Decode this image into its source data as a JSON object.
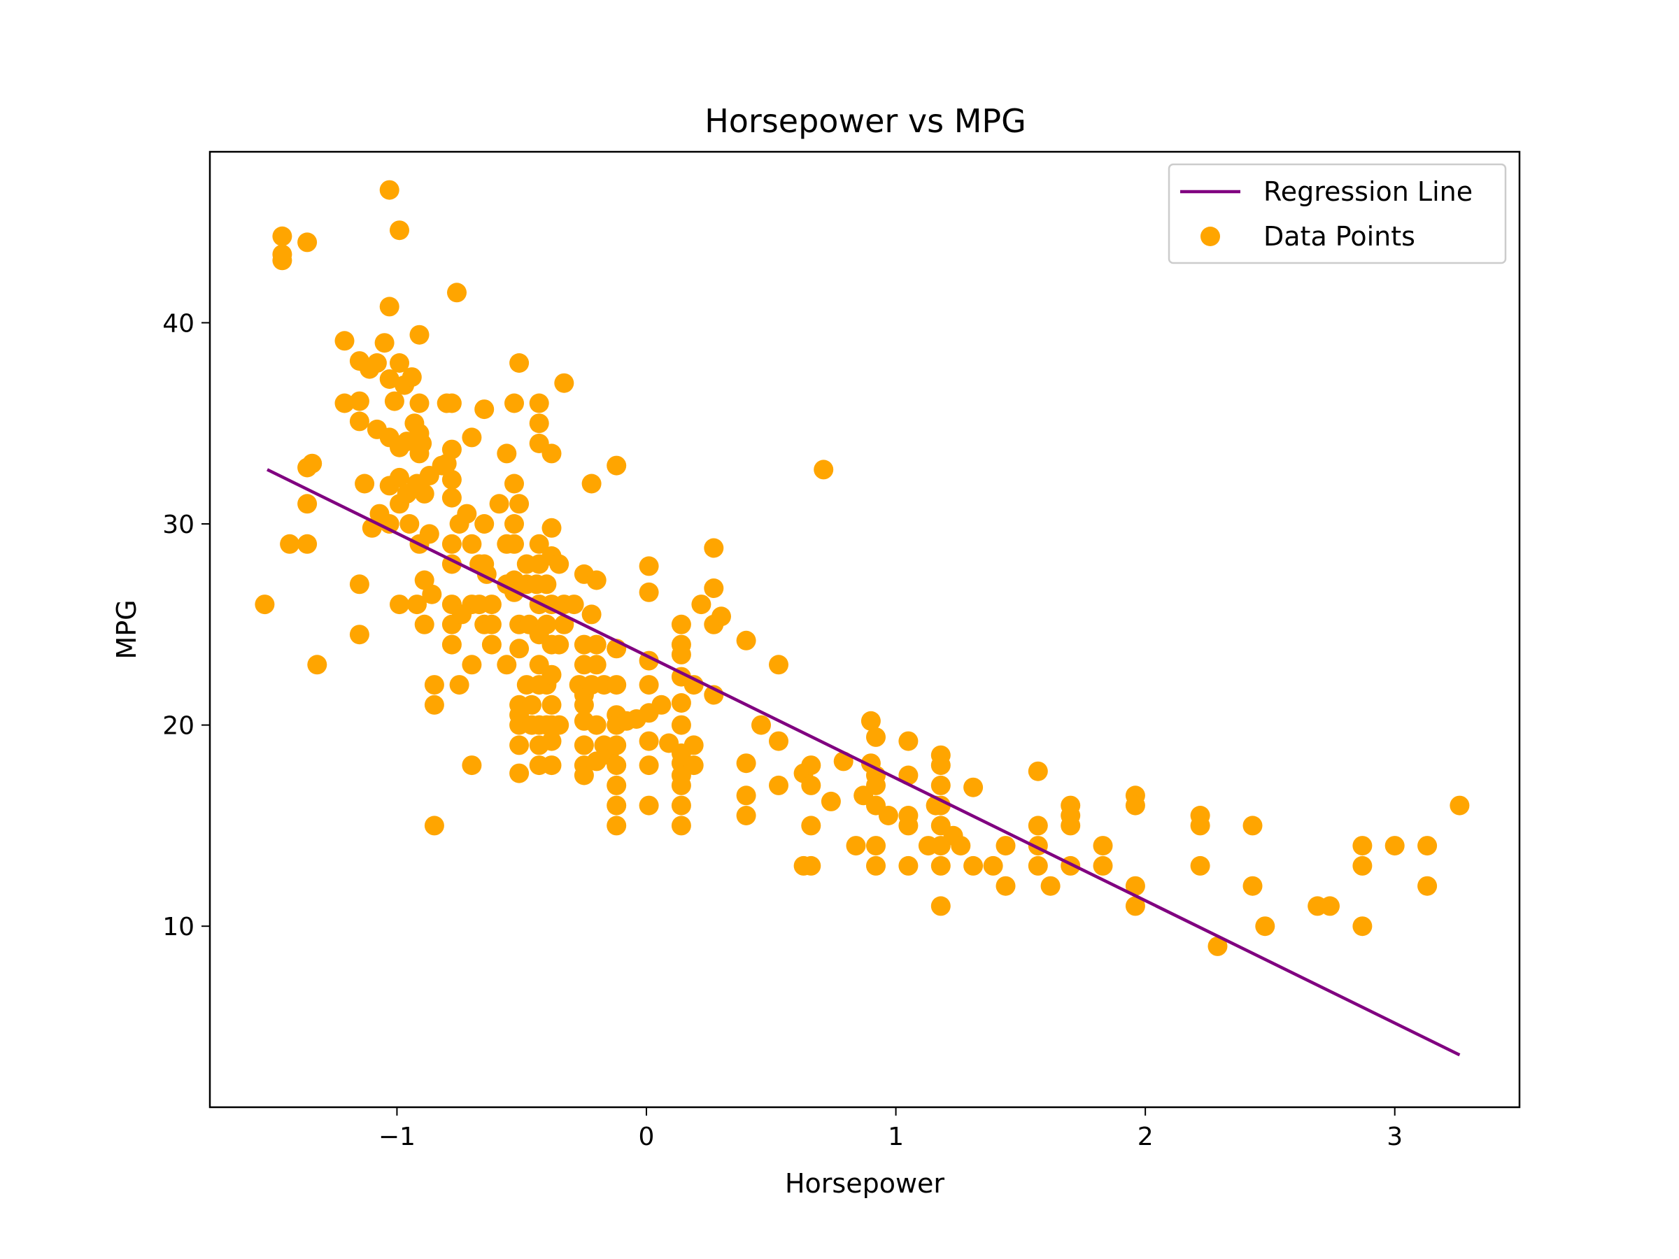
{
  "chart_data": {
    "type": "scatter",
    "title": "Horsepower vs MPG",
    "xlabel": "Horsepower",
    "ylabel": "MPG",
    "xlim": [
      -1.75,
      3.5
    ],
    "ylim": [
      1.0,
      48.5
    ],
    "x_ticks": [
      -1,
      0,
      1,
      2,
      3
    ],
    "x_tick_labels": [
      "−1",
      "0",
      "1",
      "2",
      "3"
    ],
    "y_ticks": [
      10,
      20,
      30,
      40
    ],
    "y_tick_labels": [
      "10",
      "20",
      "30",
      "40"
    ],
    "grid": false,
    "legend_position": "top-right",
    "colors": {
      "line": "#800080",
      "points": "#FFA500"
    },
    "series": [
      {
        "name": "Regression Line",
        "kind": "line",
        "x": [
          -1.52,
          3.26
        ],
        "y": [
          32.7,
          3.6
        ]
      },
      {
        "name": "Data Points",
        "kind": "scatter",
        "points": [
          [
            -1.53,
            26.0
          ],
          [
            -1.46,
            44.3
          ],
          [
            -1.46,
            43.4
          ],
          [
            -1.46,
            43.1
          ],
          [
            -1.43,
            29.0
          ],
          [
            -1.36,
            44.0
          ],
          [
            -1.36,
            32.8
          ],
          [
            -1.36,
            31.0
          ],
          [
            -1.36,
            29.0
          ],
          [
            -1.34,
            33.0
          ],
          [
            -1.32,
            23.0
          ],
          [
            -1.21,
            39.1
          ],
          [
            -1.21,
            36.0
          ],
          [
            -1.15,
            38.1
          ],
          [
            -1.15,
            36.1
          ],
          [
            -1.15,
            35.1
          ],
          [
            -1.15,
            27.0
          ],
          [
            -1.15,
            24.5
          ],
          [
            -1.13,
            32.0
          ],
          [
            -1.11,
            37.7
          ],
          [
            -1.1,
            29.8
          ],
          [
            -1.08,
            38.0
          ],
          [
            -1.08,
            34.7
          ],
          [
            -1.07,
            30.5
          ],
          [
            -1.05,
            39.0
          ],
          [
            -1.03,
            46.6
          ],
          [
            -1.03,
            40.8
          ],
          [
            -1.03,
            37.2
          ],
          [
            -1.03,
            34.3
          ],
          [
            -1.03,
            31.9
          ],
          [
            -1.03,
            30.0
          ],
          [
            -1.01,
            36.1
          ],
          [
            -0.99,
            44.6
          ],
          [
            -0.99,
            38.0
          ],
          [
            -0.99,
            33.8
          ],
          [
            -0.99,
            32.3
          ],
          [
            -0.99,
            31.0
          ],
          [
            -0.99,
            26.0
          ],
          [
            -0.97,
            36.9
          ],
          [
            -0.96,
            34.1
          ],
          [
            -0.96,
            31.5
          ],
          [
            -0.95,
            30.0
          ],
          [
            -0.94,
            37.3
          ],
          [
            -0.93,
            35.0
          ],
          [
            -0.92,
            32.0
          ],
          [
            -0.92,
            26.0
          ],
          [
            -0.91,
            39.4
          ],
          [
            -0.91,
            36.0
          ],
          [
            -0.91,
            34.5
          ],
          [
            -0.91,
            33.5
          ],
          [
            -0.91,
            29.0
          ],
          [
            -0.9,
            34.0
          ],
          [
            -0.89,
            31.5
          ],
          [
            -0.89,
            27.2
          ],
          [
            -0.89,
            25.0
          ],
          [
            -0.87,
            32.4
          ],
          [
            -0.87,
            29.5
          ],
          [
            -0.86,
            26.5
          ],
          [
            -0.85,
            22.0
          ],
          [
            -0.85,
            21.0
          ],
          [
            -0.85,
            15.0
          ],
          [
            -0.82,
            32.9
          ],
          [
            -0.8,
            36.0
          ],
          [
            -0.8,
            33.0
          ],
          [
            -0.78,
            36.0
          ],
          [
            -0.78,
            33.7
          ],
          [
            -0.78,
            32.2
          ],
          [
            -0.78,
            31.3
          ],
          [
            -0.78,
            29.0
          ],
          [
            -0.78,
            28.0
          ],
          [
            -0.78,
            26.0
          ],
          [
            -0.78,
            25.0
          ],
          [
            -0.78,
            24.0
          ],
          [
            -0.76,
            41.5
          ],
          [
            -0.75,
            30.0
          ],
          [
            -0.75,
            22.0
          ],
          [
            -0.74,
            25.5
          ],
          [
            -0.72,
            30.5
          ],
          [
            -0.7,
            34.3
          ],
          [
            -0.7,
            29.0
          ],
          [
            -0.7,
            26.0
          ],
          [
            -0.7,
            23.0
          ],
          [
            -0.7,
            18.0
          ],
          [
            -0.67,
            28.0
          ],
          [
            -0.67,
            26.0
          ],
          [
            -0.65,
            35.7
          ],
          [
            -0.65,
            30.0
          ],
          [
            -0.65,
            28.0
          ],
          [
            -0.65,
            25.0
          ],
          [
            -0.64,
            27.5
          ],
          [
            -0.62,
            26.0
          ],
          [
            -0.62,
            25.0
          ],
          [
            -0.62,
            24.0
          ],
          [
            -0.59,
            31.0
          ],
          [
            -0.56,
            33.5
          ],
          [
            -0.56,
            29.0
          ],
          [
            -0.56,
            27.0
          ],
          [
            -0.56,
            23.0
          ],
          [
            -0.53,
            36.0
          ],
          [
            -0.53,
            32.0
          ],
          [
            -0.53,
            30.0
          ],
          [
            -0.53,
            29.0
          ],
          [
            -0.53,
            27.2
          ],
          [
            -0.53,
            26.6
          ],
          [
            -0.51,
            38.0
          ],
          [
            -0.51,
            31.0
          ],
          [
            -0.51,
            25.0
          ],
          [
            -0.51,
            23.8
          ],
          [
            -0.51,
            21.0
          ],
          [
            -0.51,
            20.5
          ],
          [
            -0.51,
            20.0
          ],
          [
            -0.51,
            19.0
          ],
          [
            -0.51,
            17.6
          ],
          [
            -0.48,
            28.0
          ],
          [
            -0.48,
            27.0
          ],
          [
            -0.48,
            22.0
          ],
          [
            -0.47,
            25.0
          ],
          [
            -0.46,
            21.0
          ],
          [
            -0.46,
            20.0
          ],
          [
            -0.44,
            27.0
          ],
          [
            -0.43,
            36.0
          ],
          [
            -0.43,
            35.0
          ],
          [
            -0.43,
            34.0
          ],
          [
            -0.43,
            29.0
          ],
          [
            -0.43,
            28.0
          ],
          [
            -0.43,
            26.0
          ],
          [
            -0.43,
            24.5
          ],
          [
            -0.43,
            23.0
          ],
          [
            -0.43,
            22.0
          ],
          [
            -0.43,
            20.0
          ],
          [
            -0.43,
            19.0
          ],
          [
            -0.43,
            18.0
          ],
          [
            -0.4,
            27.0
          ],
          [
            -0.4,
            25.0
          ],
          [
            -0.4,
            22.0
          ],
          [
            -0.4,
            20.0
          ],
          [
            -0.38,
            33.5
          ],
          [
            -0.38,
            29.8
          ],
          [
            -0.38,
            28.4
          ],
          [
            -0.38,
            26.0
          ],
          [
            -0.38,
            24.0
          ],
          [
            -0.38,
            22.5
          ],
          [
            -0.38,
            21.0
          ],
          [
            -0.38,
            20.0
          ],
          [
            -0.38,
            19.2
          ],
          [
            -0.38,
            18.0
          ],
          [
            -0.35,
            28.0
          ],
          [
            -0.35,
            24.0
          ],
          [
            -0.35,
            20.0
          ],
          [
            -0.33,
            37.0
          ],
          [
            -0.33,
            26.0
          ],
          [
            -0.33,
            25.0
          ],
          [
            -0.29,
            26.0
          ],
          [
            -0.27,
            22.0
          ],
          [
            -0.25,
            27.5
          ],
          [
            -0.25,
            24.0
          ],
          [
            -0.25,
            23.0
          ],
          [
            -0.25,
            21.5
          ],
          [
            -0.25,
            21.0
          ],
          [
            -0.25,
            20.2
          ],
          [
            -0.25,
            19.0
          ],
          [
            -0.25,
            18.0
          ],
          [
            -0.25,
            17.5
          ],
          [
            -0.22,
            32.0
          ],
          [
            -0.22,
            25.5
          ],
          [
            -0.22,
            22.0
          ],
          [
            -0.2,
            27.2
          ],
          [
            -0.2,
            24.0
          ],
          [
            -0.2,
            23.0
          ],
          [
            -0.2,
            20.0
          ],
          [
            -0.2,
            18.2
          ],
          [
            -0.17,
            22.0
          ],
          [
            -0.17,
            19.0
          ],
          [
            -0.15,
            18.5
          ],
          [
            -0.12,
            32.9
          ],
          [
            -0.12,
            23.8
          ],
          [
            -0.12,
            22.0
          ],
          [
            -0.12,
            20.5
          ],
          [
            -0.12,
            20.0
          ],
          [
            -0.12,
            19.0
          ],
          [
            -0.12,
            18.0
          ],
          [
            -0.12,
            17.0
          ],
          [
            -0.12,
            16.0
          ],
          [
            -0.12,
            15.0
          ],
          [
            -0.08,
            20.2
          ],
          [
            -0.04,
            20.3
          ],
          [
            0.01,
            27.9
          ],
          [
            0.01,
            26.6
          ],
          [
            0.01,
            23.2
          ],
          [
            0.01,
            22.0
          ],
          [
            0.01,
            20.6
          ],
          [
            0.01,
            19.2
          ],
          [
            0.01,
            18.0
          ],
          [
            0.01,
            16.0
          ],
          [
            0.06,
            21.0
          ],
          [
            0.09,
            19.1
          ],
          [
            0.14,
            25.0
          ],
          [
            0.14,
            24.0
          ],
          [
            0.14,
            23.5
          ],
          [
            0.14,
            22.4
          ],
          [
            0.14,
            21.1
          ],
          [
            0.14,
            20.0
          ],
          [
            0.14,
            18.6
          ],
          [
            0.14,
            18.1
          ],
          [
            0.14,
            17.5
          ],
          [
            0.14,
            17.0
          ],
          [
            0.14,
            16.0
          ],
          [
            0.14,
            15.0
          ],
          [
            0.19,
            22.0
          ],
          [
            0.19,
            19.0
          ],
          [
            0.19,
            18.0
          ],
          [
            0.22,
            26.0
          ],
          [
            0.27,
            28.8
          ],
          [
            0.27,
            26.8
          ],
          [
            0.27,
            25.0
          ],
          [
            0.27,
            21.5
          ],
          [
            0.3,
            25.4
          ],
          [
            0.4,
            24.2
          ],
          [
            0.4,
            18.1
          ],
          [
            0.4,
            16.5
          ],
          [
            0.4,
            15.5
          ],
          [
            0.46,
            20.0
          ],
          [
            0.53,
            23.0
          ],
          [
            0.53,
            19.2
          ],
          [
            0.53,
            17.0
          ],
          [
            0.63,
            17.6
          ],
          [
            0.63,
            13.0
          ],
          [
            0.66,
            18.0
          ],
          [
            0.66,
            17.0
          ],
          [
            0.66,
            15.0
          ],
          [
            0.66,
            13.0
          ],
          [
            0.71,
            32.7
          ],
          [
            0.74,
            16.2
          ],
          [
            0.79,
            18.2
          ],
          [
            0.84,
            14.0
          ],
          [
            0.87,
            16.5
          ],
          [
            0.9,
            20.2
          ],
          [
            0.9,
            18.1
          ],
          [
            0.92,
            19.4
          ],
          [
            0.92,
            17.5
          ],
          [
            0.92,
            17.0
          ],
          [
            0.92,
            16.0
          ],
          [
            0.92,
            14.0
          ],
          [
            0.92,
            13.0
          ],
          [
            0.97,
            15.5
          ],
          [
            1.05,
            19.2
          ],
          [
            1.05,
            17.5
          ],
          [
            1.05,
            15.5
          ],
          [
            1.05,
            15.0
          ],
          [
            1.05,
            13.0
          ],
          [
            1.13,
            14.0
          ],
          [
            1.16,
            16.0
          ],
          [
            1.18,
            18.5
          ],
          [
            1.18,
            18.0
          ],
          [
            1.18,
            17.0
          ],
          [
            1.18,
            16.0
          ],
          [
            1.18,
            15.0
          ],
          [
            1.18,
            14.0
          ],
          [
            1.18,
            13.0
          ],
          [
            1.18,
            11.0
          ],
          [
            1.23,
            14.5
          ],
          [
            1.26,
            14.0
          ],
          [
            1.31,
            16.9
          ],
          [
            1.31,
            13.0
          ],
          [
            1.39,
            13.0
          ],
          [
            1.44,
            14.0
          ],
          [
            1.44,
            12.0
          ],
          [
            1.57,
            17.7
          ],
          [
            1.57,
            15.0
          ],
          [
            1.57,
            14.0
          ],
          [
            1.57,
            13.0
          ],
          [
            1.62,
            12.0
          ],
          [
            1.7,
            16.0
          ],
          [
            1.7,
            15.5
          ],
          [
            1.7,
            15.0
          ],
          [
            1.7,
            13.0
          ],
          [
            1.83,
            14.0
          ],
          [
            1.83,
            13.0
          ],
          [
            1.96,
            16.5
          ],
          [
            1.96,
            16.0
          ],
          [
            1.96,
            12.0
          ],
          [
            1.96,
            11.0
          ],
          [
            2.22,
            15.5
          ],
          [
            2.22,
            15.0
          ],
          [
            2.22,
            13.0
          ],
          [
            2.29,
            9.0
          ],
          [
            2.43,
            15.0
          ],
          [
            2.43,
            12.0
          ],
          [
            2.48,
            10.0
          ],
          [
            2.69,
            11.0
          ],
          [
            2.74,
            11.0
          ],
          [
            2.87,
            14.0
          ],
          [
            2.87,
            13.0
          ],
          [
            2.87,
            10.0
          ],
          [
            3.0,
            14.0
          ],
          [
            3.13,
            14.0
          ],
          [
            3.13,
            12.0
          ],
          [
            3.26,
            16.0
          ]
        ]
      }
    ]
  }
}
